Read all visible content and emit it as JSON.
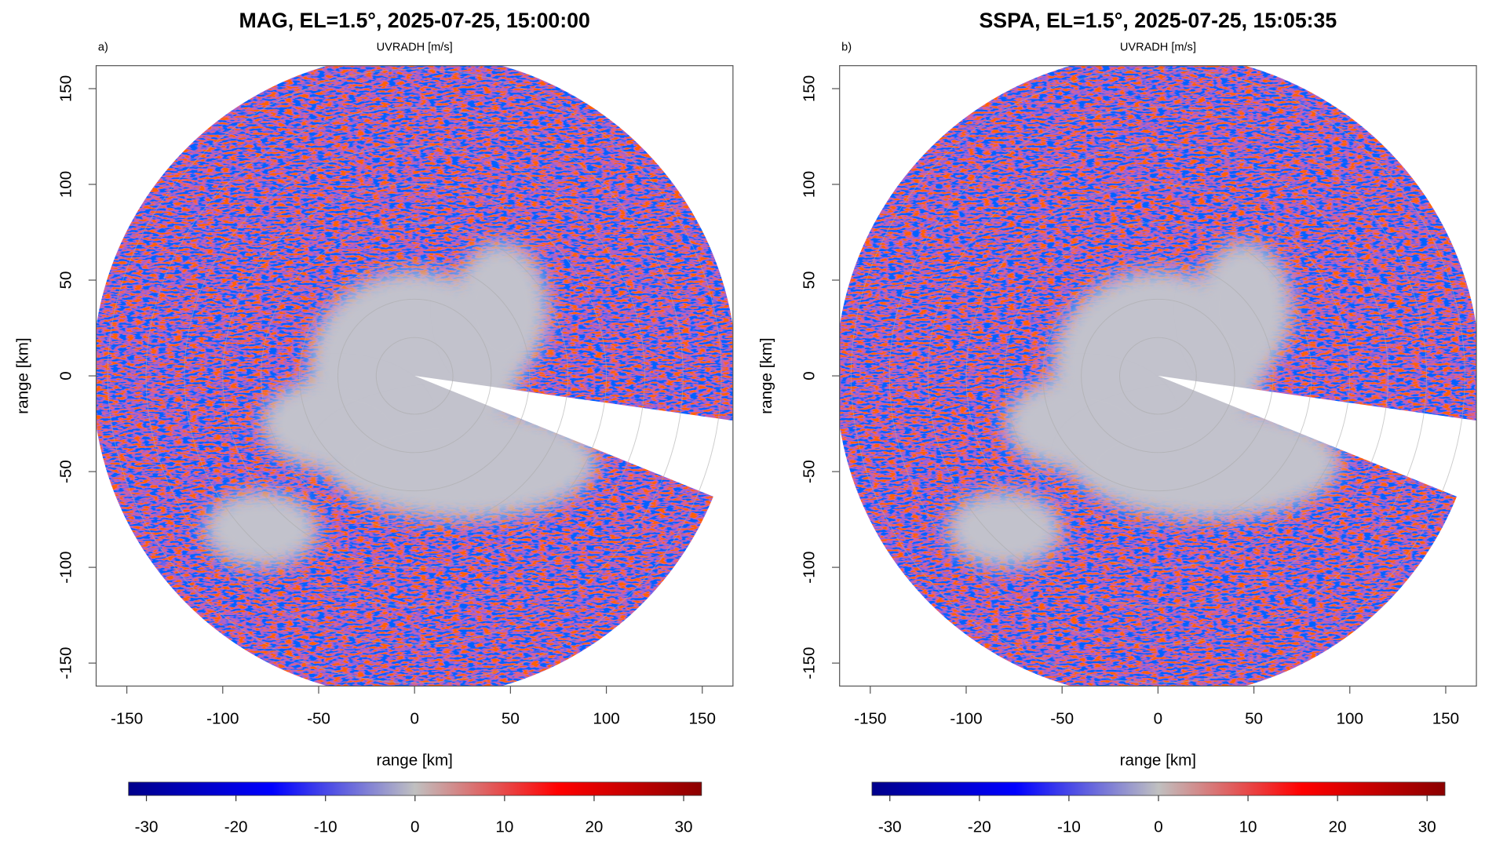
{
  "chart_data": [
    {
      "type": "radar-ppi",
      "panel_label": "a)",
      "title": "MAG, EL=1.5°, 2025-07-25, 15:00:00",
      "subtitle": "UVRADH [m/s]",
      "xlabel": "range [km]",
      "ylabel": "range [km]",
      "xlim": [
        -166,
        166
      ],
      "ylim": [
        -162,
        162
      ],
      "xticks": [
        -150,
        -100,
        -50,
        0,
        50,
        100,
        150
      ],
      "yticks": [
        -150,
        -100,
        -50,
        0,
        50,
        100,
        150
      ],
      "colorbar": {
        "lim": [
          -32,
          32
        ],
        "ticks": [
          -30,
          -20,
          -10,
          0,
          10,
          20,
          30
        ],
        "colors": [
          "#00008b",
          "#0000ff",
          "#c0c0c0",
          "#ff0000",
          "#8b0000"
        ]
      }
    },
    {
      "type": "radar-ppi",
      "panel_label": "b)",
      "title": "SSPA, EL=1.5°, 2025-07-25, 15:05:35",
      "subtitle": "UVRADH [m/s]",
      "xlabel": "range [km]",
      "ylabel": "range [km]",
      "xlim": [
        -166,
        166
      ],
      "ylim": [
        -162,
        162
      ],
      "xticks": [
        -150,
        -100,
        -50,
        0,
        50,
        100,
        150
      ],
      "yticks": [
        -150,
        -100,
        -50,
        0,
        50,
        100,
        150
      ],
      "colorbar": {
        "lim": [
          -32,
          32
        ],
        "ticks": [
          -30,
          -20,
          -10,
          0,
          10,
          20,
          30
        ],
        "colors": [
          "#00008b",
          "#0000ff",
          "#c0c0c0",
          "#ff0000",
          "#8b0000"
        ]
      }
    }
  ]
}
